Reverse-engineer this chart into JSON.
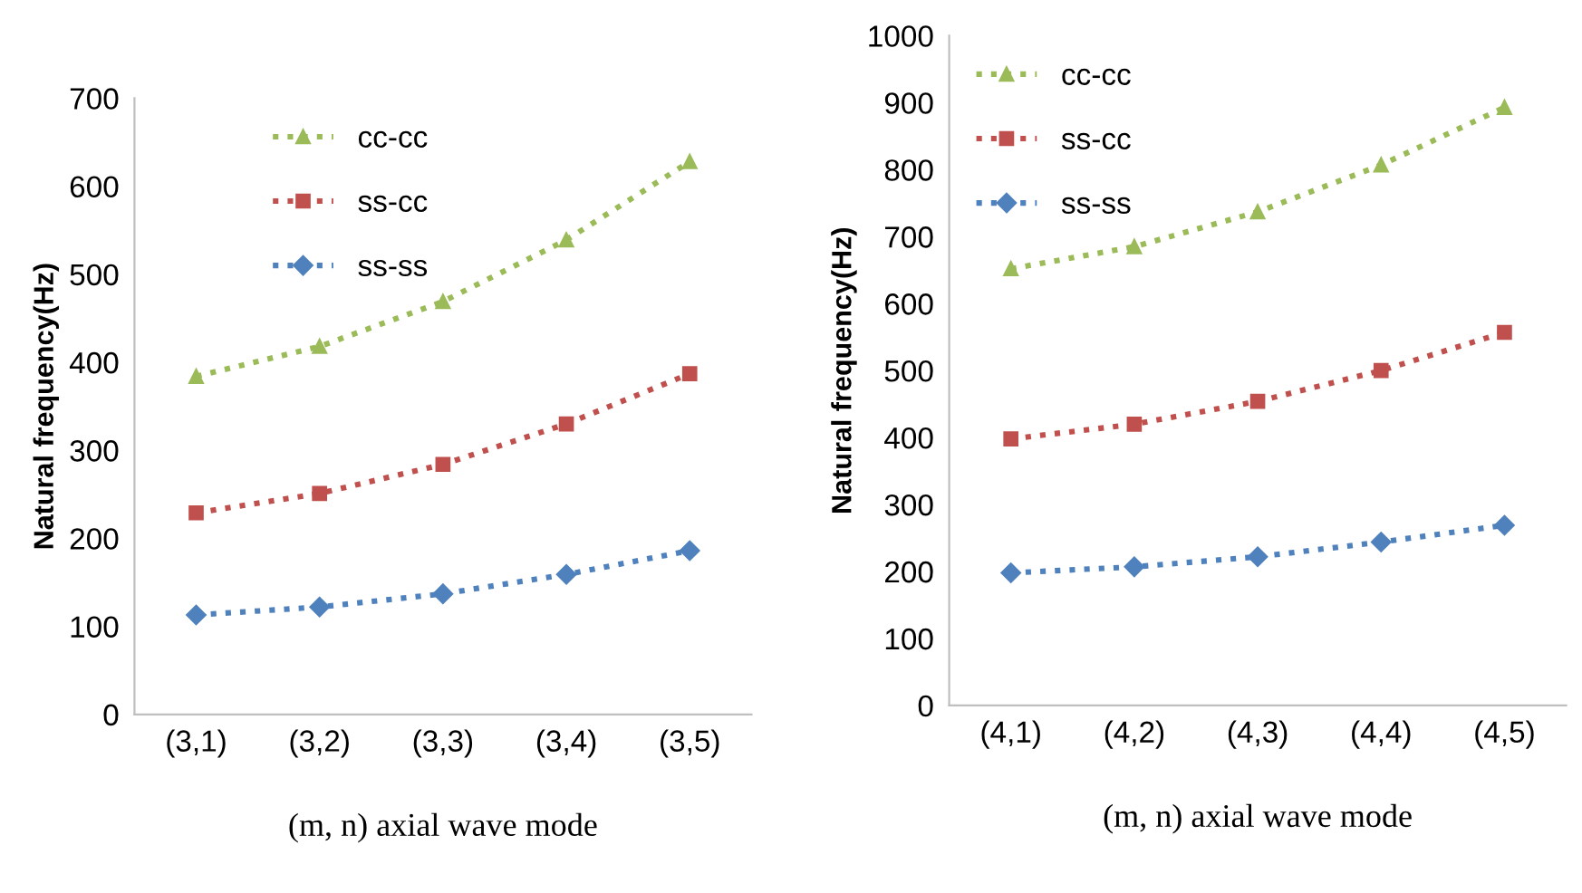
{
  "chart_data": [
    {
      "type": "line",
      "categories": [
        "(3,1)",
        "(3,2)",
        "(3,3)",
        "(3,4)",
        "(3,5)"
      ],
      "xlabel": "(m, n) axial wave mode",
      "ylabel": "Natural frequency(Hz)",
      "ylim": [
        0,
        700
      ],
      "yticks": [
        0,
        100,
        200,
        300,
        400,
        500,
        600,
        700
      ],
      "grid": false,
      "legend": "top",
      "line_style": "dotted",
      "series": [
        {
          "name": "cc-cc",
          "color": "#9bbb59",
          "marker": "triangle",
          "values": [
            384,
            418,
            469,
            539,
            628
          ]
        },
        {
          "name": "ss-cc",
          "color": "#c0504d",
          "marker": "square",
          "values": [
            229,
            251,
            284,
            330,
            387
          ]
        },
        {
          "name": "ss-ss",
          "color": "#4f81bd",
          "marker": "diamond",
          "values": [
            113,
            122,
            137,
            159,
            186
          ]
        }
      ]
    },
    {
      "type": "line",
      "categories": [
        "(4,1)",
        "(4,2)",
        "(4,3)",
        "(4,4)",
        "(4,5)"
      ],
      "xlabel": "(m, n) axial wave mode",
      "ylabel": "Natural frequency(Hz)",
      "ylim": [
        0,
        1000
      ],
      "yticks": [
        0,
        100,
        200,
        300,
        400,
        500,
        600,
        700,
        800,
        900,
        1000
      ],
      "grid": false,
      "legend": "top left",
      "line_style": "dotted",
      "series": [
        {
          "name": "cc-cc",
          "color": "#9bbb59",
          "marker": "triangle",
          "values": [
            652,
            685,
            737,
            807,
            893
          ]
        },
        {
          "name": "ss-cc",
          "color": "#c0504d",
          "marker": "square",
          "values": [
            398,
            420,
            454,
            500,
            557
          ]
        },
        {
          "name": "ss-ss",
          "color": "#4f81bd",
          "marker": "diamond",
          "values": [
            198,
            207,
            222,
            244,
            269
          ]
        }
      ]
    }
  ]
}
